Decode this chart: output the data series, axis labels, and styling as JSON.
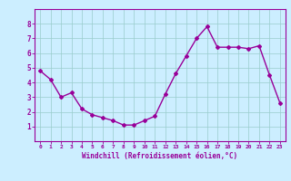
{
  "x": [
    0,
    1,
    2,
    3,
    4,
    5,
    6,
    7,
    8,
    9,
    10,
    11,
    12,
    13,
    14,
    15,
    16,
    17,
    18,
    19,
    20,
    21,
    22,
    23
  ],
  "y": [
    4.8,
    4.2,
    3.0,
    3.3,
    2.2,
    1.8,
    1.6,
    1.4,
    1.1,
    1.1,
    1.4,
    1.7,
    3.2,
    4.6,
    5.8,
    7.0,
    7.8,
    6.4,
    6.4,
    6.4,
    6.3,
    6.5,
    4.5,
    2.6
  ],
  "line_color": "#990099",
  "marker": "D",
  "markersize": 2,
  "linewidth": 1.0,
  "bg_color": "#cceeff",
  "grid_color": "#99cccc",
  "xlabel": "Windchill (Refroidissement éolien,°C)",
  "xlabel_color": "#990099",
  "tick_color": "#990099",
  "ylim": [
    0,
    9
  ],
  "xlim": [
    -0.5,
    23.5
  ],
  "yticks": [
    1,
    2,
    3,
    4,
    5,
    6,
    7,
    8
  ],
  "xtick_labels": [
    "0",
    "1",
    "2",
    "3",
    "4",
    "5",
    "6",
    "7",
    "8",
    "9",
    "10",
    "11",
    "12",
    "13",
    "14",
    "15",
    "16",
    "17",
    "18",
    "19",
    "20",
    "21",
    "22",
    "23"
  ],
  "spine_color": "#990099",
  "fig_bg": "#cceeff"
}
